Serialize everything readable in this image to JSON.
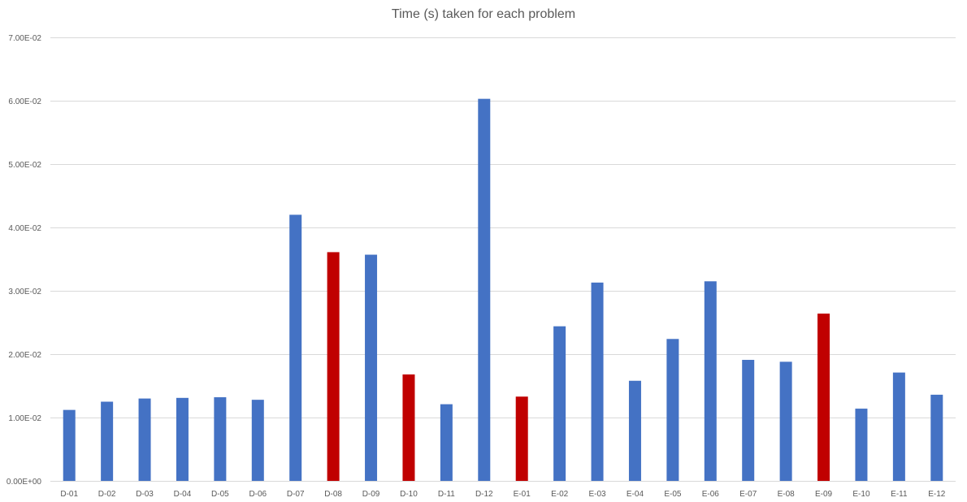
{
  "chart_data": {
    "type": "bar",
    "title": "Time (s) taken for each problem",
    "xlabel": "",
    "ylabel": "",
    "ylim": [
      0,
      0.07
    ],
    "yticks": [
      0,
      0.01,
      0.02,
      0.03,
      0.04,
      0.05,
      0.06,
      0.07
    ],
    "ytick_labels": [
      "0.00E+00",
      "1.00E-02",
      "2.00E-02",
      "3.00E-02",
      "4.00E-02",
      "5.00E-02",
      "6.00E-02",
      "7.00E-02"
    ],
    "grid": true,
    "legend": "none",
    "categories": [
      "D-01",
      "D-02",
      "D-03",
      "D-04",
      "D-05",
      "D-06",
      "D-07",
      "D-08",
      "D-09",
      "D-10",
      "D-11",
      "D-12",
      "E-01",
      "E-02",
      "E-03",
      "E-04",
      "E-05",
      "E-06",
      "E-07",
      "E-08",
      "E-09",
      "E-10",
      "E-11",
      "E-12"
    ],
    "values": [
      0.0112,
      0.0125,
      0.013,
      0.0131,
      0.0132,
      0.0128,
      0.042,
      0.0361,
      0.0357,
      0.0168,
      0.0121,
      0.0603,
      0.0133,
      0.0244,
      0.0313,
      0.0158,
      0.0224,
      0.0315,
      0.0191,
      0.0188,
      0.0264,
      0.0114,
      0.0171,
      0.0136
    ],
    "highlighted": [
      false,
      false,
      false,
      false,
      false,
      false,
      false,
      true,
      false,
      true,
      false,
      false,
      true,
      false,
      false,
      false,
      false,
      false,
      false,
      false,
      true,
      false,
      false,
      false
    ],
    "colors": {
      "bar": "#4472C4",
      "highlight": "#C00000",
      "grid": "#D9D9D9",
      "text": "#595959"
    }
  }
}
